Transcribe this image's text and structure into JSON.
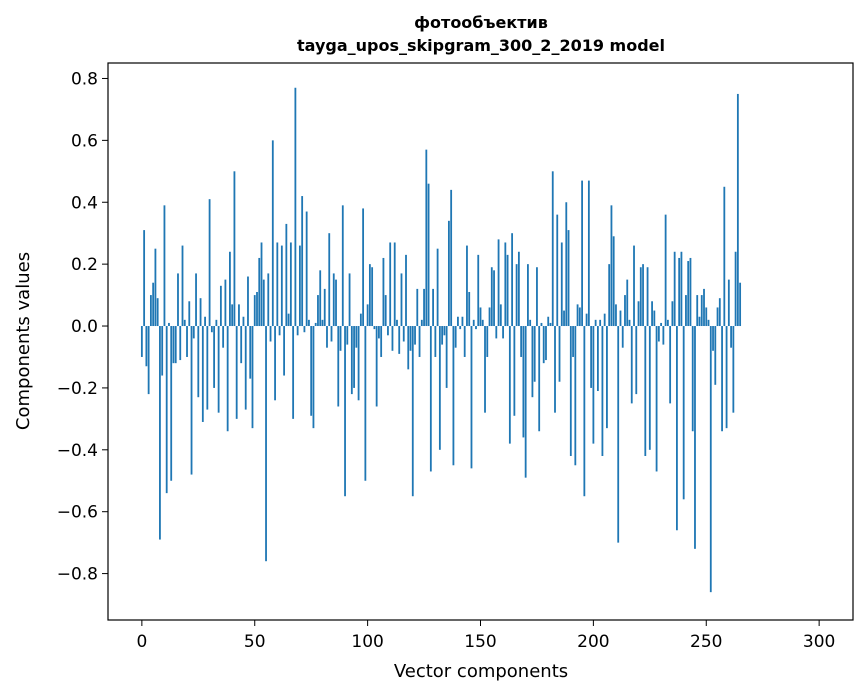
{
  "chart_data": {
    "type": "bar",
    "title": "фотообъектив",
    "subtitle": "tayga_upos_skipgram_300_2_2019 model",
    "xlabel": "Vector components",
    "ylabel": "Components values",
    "xlim": [
      -15,
      315
    ],
    "ylim": [
      -0.95,
      0.85
    ],
    "xticks": [
      0,
      50,
      100,
      150,
      200,
      250,
      300
    ],
    "yticks": [
      -0.8,
      -0.6,
      -0.4,
      -0.2,
      0.0,
      0.2,
      0.4,
      0.6,
      0.8
    ],
    "ytick_labels": [
      "−0.8",
      "−0.6",
      "−0.4",
      "−0.2",
      "0.0",
      "0.2",
      "0.4",
      "0.6",
      "0.8"
    ],
    "grid": false,
    "bar_color": "#1f77b4",
    "values": [
      -0.1,
      0.31,
      -0.13,
      -0.22,
      0.1,
      0.14,
      0.25,
      0.09,
      -0.69,
      -0.16,
      0.39,
      -0.54,
      0.01,
      -0.5,
      -0.12,
      -0.12,
      0.17,
      -0.11,
      0.26,
      0.02,
      -0.1,
      0.08,
      -0.48,
      -0.04,
      0.17,
      -0.23,
      0.09,
      -0.31,
      0.03,
      -0.27,
      0.41,
      -0.02,
      -0.2,
      0.02,
      -0.28,
      0.13,
      -0.07,
      0.15,
      -0.34,
      0.24,
      0.07,
      0.5,
      -0.3,
      0.07,
      -0.12,
      0.03,
      -0.27,
      0.16,
      -0.17,
      -0.33,
      0.1,
      0.11,
      0.22,
      0.27,
      0.15,
      -0.76,
      0.17,
      -0.05,
      0.6,
      -0.24,
      0.27,
      -0.03,
      0.26,
      -0.16,
      0.33,
      0.04,
      0.27,
      -0.3,
      0.77,
      -0.03,
      0.26,
      0.42,
      -0.02,
      0.37,
      0.02,
      -0.29,
      -0.33,
      0.01,
      0.1,
      0.18,
      0.02,
      0.12,
      -0.07,
      0.3,
      -0.05,
      0.17,
      0.15,
      -0.26,
      -0.08,
      0.39,
      -0.55,
      -0.06,
      0.17,
      -0.22,
      -0.2,
      -0.07,
      -0.24,
      0.04,
      0.38,
      -0.5,
      0.07,
      0.2,
      0.19,
      -0.01,
      -0.26,
      -0.04,
      -0.1,
      0.22,
      0.1,
      -0.03,
      0.27,
      -0.08,
      0.27,
      0.02,
      -0.09,
      0.17,
      -0.05,
      0.23,
      -0.14,
      -0.08,
      -0.55,
      -0.06,
      0.12,
      -0.1,
      0.02,
      0.12,
      0.57,
      0.46,
      -0.47,
      0.12,
      -0.1,
      0.25,
      -0.4,
      -0.06,
      -0.03,
      -0.2,
      0.34,
      0.44,
      -0.45,
      -0.07,
      0.03,
      -0.01,
      0.03,
      -0.1,
      0.26,
      0.11,
      -0.46,
      0.02,
      -0.01,
      0.23,
      0.06,
      0.02,
      -0.28,
      -0.1,
      0.06,
      0.19,
      0.18,
      -0.04,
      0.28,
      0.07,
      -0.04,
      0.27,
      0.23,
      -0.38,
      0.3,
      -0.29,
      0.2,
      0.24,
      -0.1,
      -0.36,
      -0.49,
      0.2,
      0.02,
      -0.23,
      -0.18,
      0.19,
      -0.34,
      0.01,
      -0.12,
      -0.11,
      0.03,
      0.01,
      0.5,
      -0.28,
      0.36,
      -0.18,
      0.27,
      0.05,
      0.4,
      0.31,
      -0.42,
      -0.1,
      -0.45,
      0.07,
      0.06,
      0.47,
      -0.55,
      0.04,
      0.47,
      -0.2,
      -0.38,
      0.02,
      -0.21,
      0.02,
      -0.42,
      0.04,
      -0.33,
      0.2,
      0.39,
      0.29,
      0.07,
      -0.7,
      0.05,
      -0.07,
      0.1,
      0.15,
      0.02,
      -0.25,
      0.26,
      -0.22,
      0.08,
      0.19,
      0.2,
      -0.42,
      0.19,
      -0.4,
      0.08,
      0.05,
      -0.47,
      -0.05,
      0.01,
      -0.06,
      0.36,
      0.02,
      -0.25,
      0.08,
      0.24,
      -0.66,
      0.22,
      0.24,
      -0.56,
      0.1,
      0.21,
      0.22,
      -0.34,
      -0.72,
      0.1,
      0.03,
      0.1,
      0.12,
      0.06,
      0.02,
      -0.86,
      -0.08,
      -0.19,
      0.06,
      0.09,
      -0.34,
      0.45,
      -0.33,
      0.15,
      -0.07,
      -0.28,
      0.24,
      0.75,
      0.14
    ]
  }
}
